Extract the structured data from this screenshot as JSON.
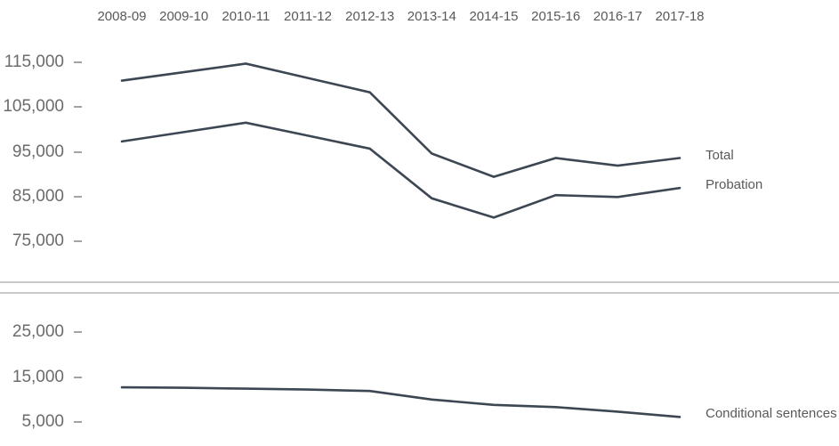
{
  "chart_data": {
    "type": "line",
    "title": "",
    "categories": [
      "2008-09",
      "2009-10",
      "2010-11",
      "2011-12",
      "2012-13",
      "2013-14",
      "2014-15",
      "2015-16",
      "2016-17",
      "2017-18"
    ],
    "legend_position": "right-end-labels",
    "grid": false,
    "line_color": "#3d4753",
    "text_color": "#595959",
    "divider_color": "#c9c9c9",
    "panels": [
      {
        "name": "upper-panel",
        "ylim": [
          75000,
          115000
        ],
        "yticks": [
          {
            "label": "115,000",
            "value": 115000
          },
          {
            "label": "105,000",
            "value": 105000
          },
          {
            "label": "95,000",
            "value": 95000
          },
          {
            "label": "85,000",
            "value": 85000
          },
          {
            "label": "75,000",
            "value": 75000
          }
        ],
        "series": [
          {
            "name": "Total",
            "values": [
              110900,
              112800,
              114700,
              111500,
              108300,
              94600,
              89400,
              93600,
              91900,
              93600
            ]
          },
          {
            "name": "Probation",
            "values": [
              97300,
              99400,
              101500,
              98600,
              95700,
              84600,
              80300,
              85300,
              84900,
              86900
            ]
          }
        ]
      },
      {
        "name": "lower-panel",
        "ylim": [
          5000,
          25000
        ],
        "yticks": [
          {
            "label": "25,000",
            "value": 25000
          },
          {
            "label": "15,000",
            "value": 15000
          },
          {
            "label": "5,000",
            "value": 5000
          }
        ],
        "series": [
          {
            "name": "Conditional sentences",
            "values": [
              12700,
              12600,
              12400,
              12200,
              11900,
              10000,
              8800,
              8300,
              7300,
              6100
            ]
          }
        ]
      }
    ]
  }
}
